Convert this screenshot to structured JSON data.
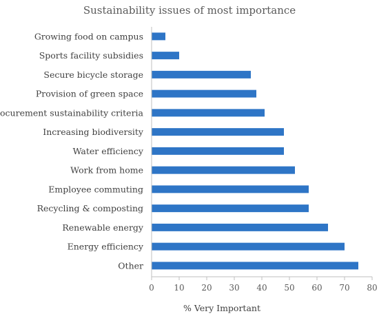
{
  "chart_data": {
    "type": "bar",
    "orientation": "horizontal",
    "title": "Sustainability issues of most importance",
    "xlabel": "% Very Important",
    "ylabel": "",
    "categories": [
      "Growing food on campus",
      "Sports facility subsidies",
      "Secure bicycle storage",
      "Provision of green space",
      "Procurement sustainability criteria",
      "Increasing biodiversity",
      "Water efficiency",
      "Work from home",
      "Employee commuting",
      "Recycling & composting",
      "Renewable energy",
      "Energy efficiency",
      "Other"
    ],
    "values": [
      5,
      10,
      36,
      38,
      41,
      48,
      48,
      52,
      57,
      57,
      64,
      70,
      75
    ],
    "xlim": [
      0,
      80
    ],
    "xticks": [
      "0",
      "10",
      "20",
      "30",
      "40",
      "50",
      "60",
      "70",
      "80"
    ],
    "bar_color": "#2e75c6",
    "grid": false,
    "legend": "none"
  }
}
